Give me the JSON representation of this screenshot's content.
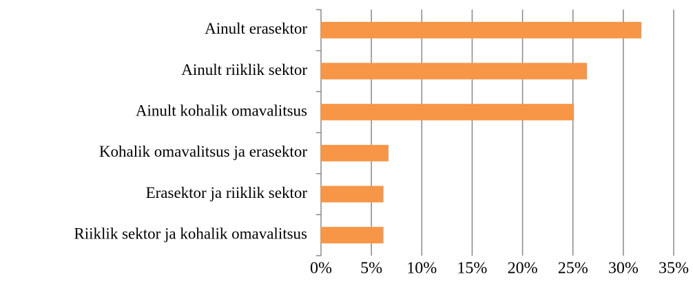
{
  "chart_data": {
    "type": "bar",
    "orientation": "horizontal",
    "categories": [
      "Ainult erasektor",
      "Ainult riiklik sektor",
      "Ainult kohalik omavalitsus",
      "Kohalik omavalitsus ja erasektor",
      "Erasektor ja riiklik sektor",
      "Riiklik sektor ja kohalik omavalitsus"
    ],
    "values": [
      31.8,
      26.4,
      25.1,
      6.7,
      6.2,
      6.2
    ],
    "color": "#f79646",
    "xlim": [
      0,
      35
    ],
    "xticks": [
      {
        "value": 0,
        "label": "0%"
      },
      {
        "value": 5,
        "label": "5%"
      },
      {
        "value": 10,
        "label": "10%"
      },
      {
        "value": 15,
        "label": "15%"
      },
      {
        "value": 20,
        "label": "20%"
      },
      {
        "value": 25,
        "label": "25%"
      },
      {
        "value": 30,
        "label": "30%"
      },
      {
        "value": 35,
        "label": "35%"
      }
    ],
    "grid": true
  }
}
